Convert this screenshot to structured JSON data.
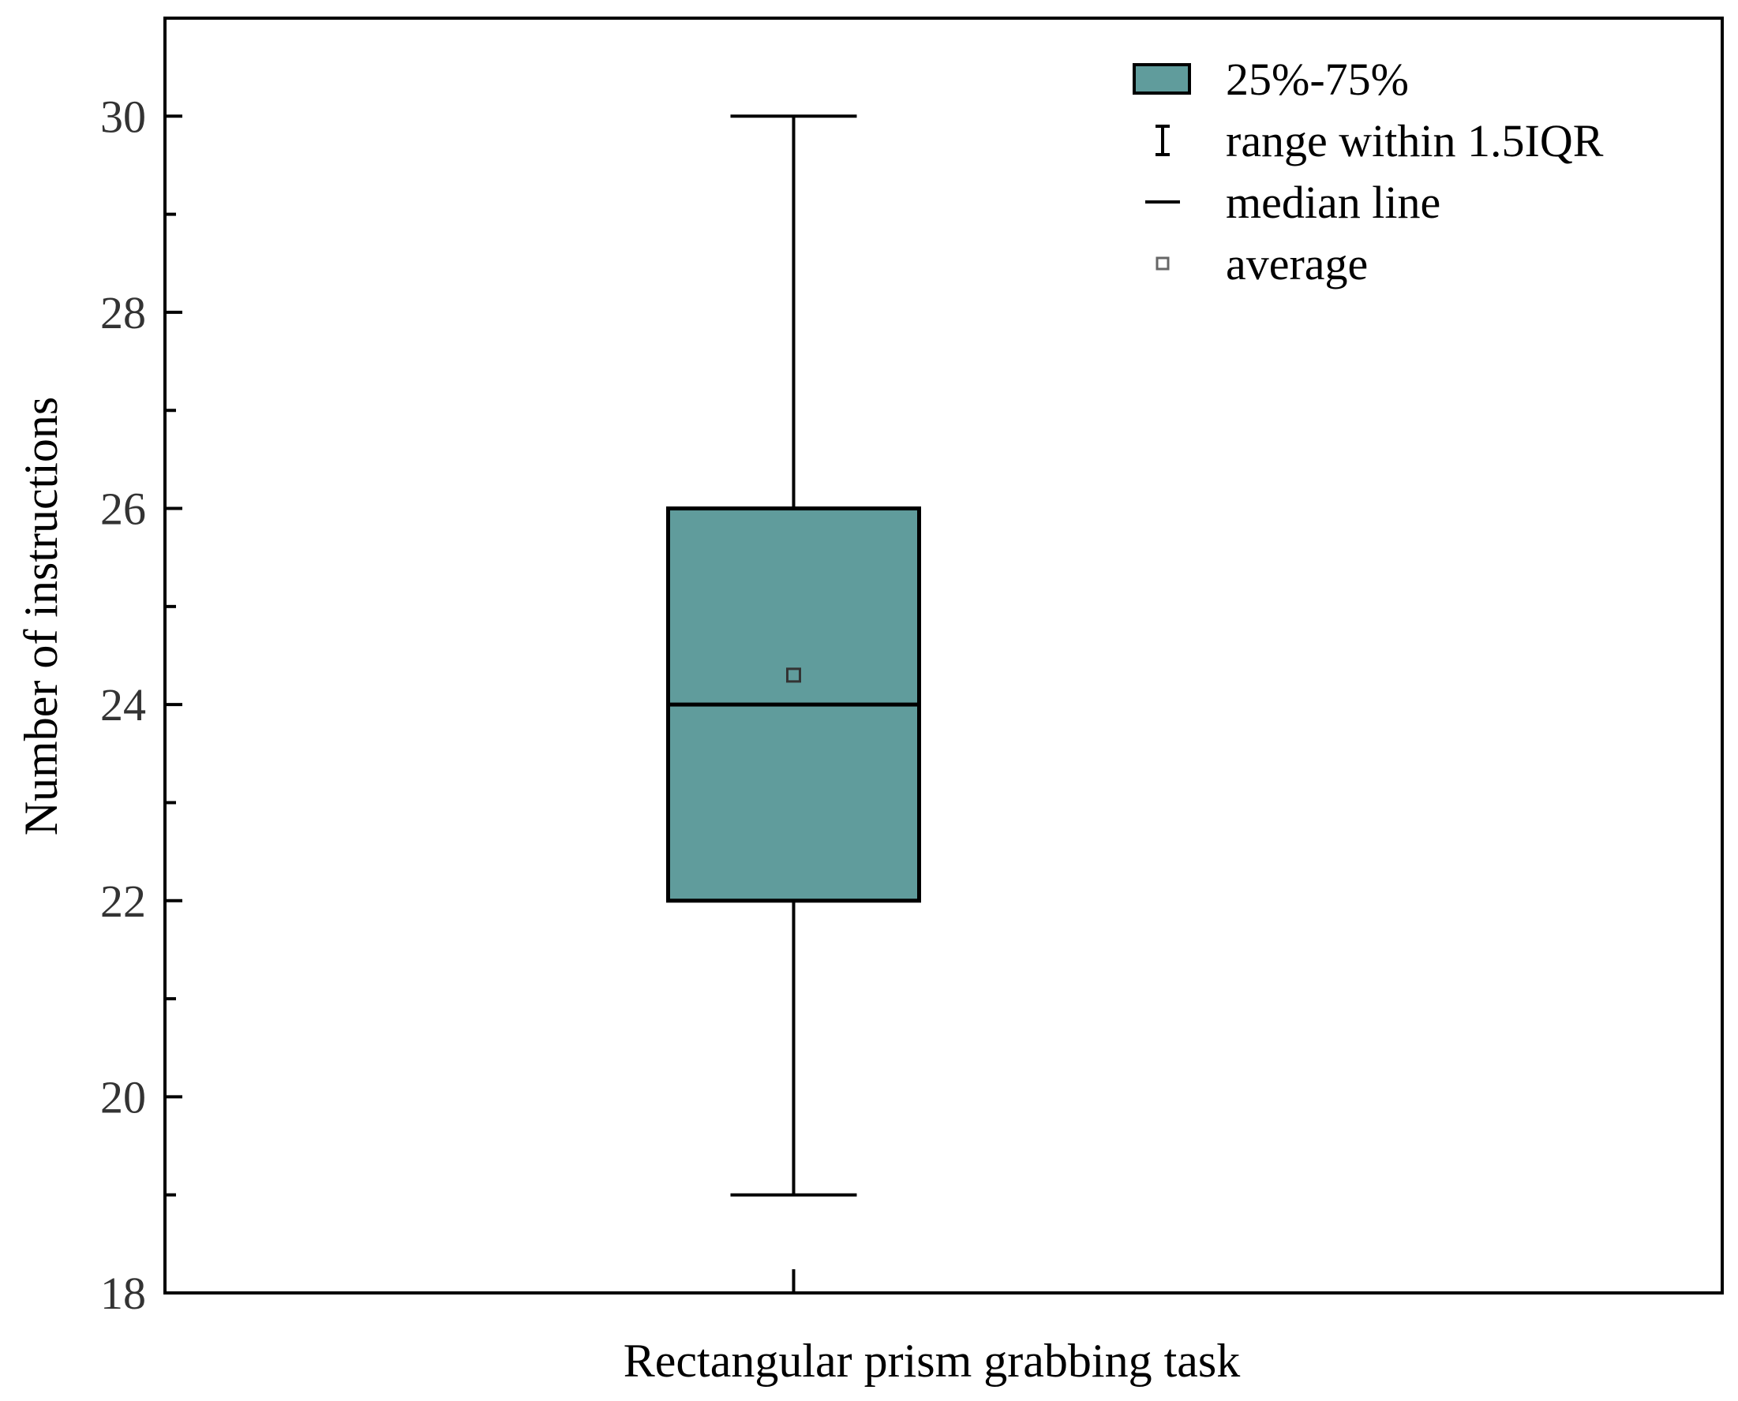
{
  "chart_data": {
    "type": "box",
    "categories": [
      "Rectangular prism grabbing task"
    ],
    "boxes": [
      {
        "category": "Rectangular prism grabbing task",
        "whisker_low": 19,
        "q1": 22,
        "median": 24,
        "q3": 26,
        "whisker_high": 30,
        "mean": 24.3
      }
    ],
    "title": "",
    "xlabel": "Rectangular prism grabbing task",
    "ylabel": "Number of instructions",
    "ylim": [
      18,
      31
    ],
    "yticks": [
      "18",
      "20",
      "22",
      "24",
      "26",
      "28",
      "30"
    ],
    "grid": false,
    "legend": {
      "position": "top-right",
      "items": [
        {
          "key": "box",
          "label": "25%-75%"
        },
        {
          "key": "whisker",
          "label": "range within 1.5IQR"
        },
        {
          "key": "median",
          "label": "median line"
        },
        {
          "key": "mean",
          "label": "average"
        }
      ]
    },
    "colors": {
      "box_fill": "#609c9c",
      "line": "#000000",
      "mean_marker": "#666666"
    }
  }
}
